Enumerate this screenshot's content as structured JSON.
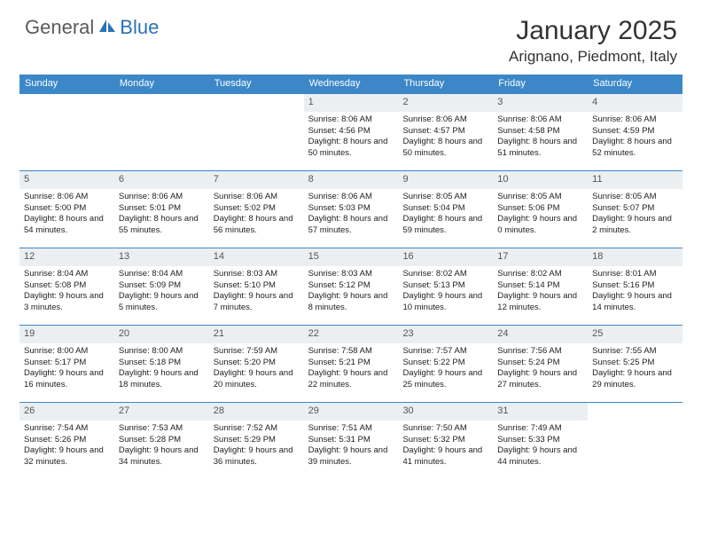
{
  "logo": {
    "general": "General",
    "blue": "Blue"
  },
  "title": "January 2025",
  "location": "Arignano, Piedmont, Italy",
  "colors": {
    "header_bg": "#3b87c8",
    "daynum_bg": "#eceff1",
    "row_border": "#3b87c8",
    "logo_blue": "#2a72b5",
    "logo_gray": "#5a5a5a"
  },
  "weekdays": [
    "Sunday",
    "Monday",
    "Tuesday",
    "Wednesday",
    "Thursday",
    "Friday",
    "Saturday"
  ],
  "weeks": [
    [
      {
        "empty": true
      },
      {
        "empty": true
      },
      {
        "empty": true
      },
      {
        "num": "1",
        "sunrise": "Sunrise: 8:06 AM",
        "sunset": "Sunset: 4:56 PM",
        "daylight": "Daylight: 8 hours and 50 minutes."
      },
      {
        "num": "2",
        "sunrise": "Sunrise: 8:06 AM",
        "sunset": "Sunset: 4:57 PM",
        "daylight": "Daylight: 8 hours and 50 minutes."
      },
      {
        "num": "3",
        "sunrise": "Sunrise: 8:06 AM",
        "sunset": "Sunset: 4:58 PM",
        "daylight": "Daylight: 8 hours and 51 minutes."
      },
      {
        "num": "4",
        "sunrise": "Sunrise: 8:06 AM",
        "sunset": "Sunset: 4:59 PM",
        "daylight": "Daylight: 8 hours and 52 minutes."
      }
    ],
    [
      {
        "num": "5",
        "sunrise": "Sunrise: 8:06 AM",
        "sunset": "Sunset: 5:00 PM",
        "daylight": "Daylight: 8 hours and 54 minutes."
      },
      {
        "num": "6",
        "sunrise": "Sunrise: 8:06 AM",
        "sunset": "Sunset: 5:01 PM",
        "daylight": "Daylight: 8 hours and 55 minutes."
      },
      {
        "num": "7",
        "sunrise": "Sunrise: 8:06 AM",
        "sunset": "Sunset: 5:02 PM",
        "daylight": "Daylight: 8 hours and 56 minutes."
      },
      {
        "num": "8",
        "sunrise": "Sunrise: 8:06 AM",
        "sunset": "Sunset: 5:03 PM",
        "daylight": "Daylight: 8 hours and 57 minutes."
      },
      {
        "num": "9",
        "sunrise": "Sunrise: 8:05 AM",
        "sunset": "Sunset: 5:04 PM",
        "daylight": "Daylight: 8 hours and 59 minutes."
      },
      {
        "num": "10",
        "sunrise": "Sunrise: 8:05 AM",
        "sunset": "Sunset: 5:06 PM",
        "daylight": "Daylight: 9 hours and 0 minutes."
      },
      {
        "num": "11",
        "sunrise": "Sunrise: 8:05 AM",
        "sunset": "Sunset: 5:07 PM",
        "daylight": "Daylight: 9 hours and 2 minutes."
      }
    ],
    [
      {
        "num": "12",
        "sunrise": "Sunrise: 8:04 AM",
        "sunset": "Sunset: 5:08 PM",
        "daylight": "Daylight: 9 hours and 3 minutes."
      },
      {
        "num": "13",
        "sunrise": "Sunrise: 8:04 AM",
        "sunset": "Sunset: 5:09 PM",
        "daylight": "Daylight: 9 hours and 5 minutes."
      },
      {
        "num": "14",
        "sunrise": "Sunrise: 8:03 AM",
        "sunset": "Sunset: 5:10 PM",
        "daylight": "Daylight: 9 hours and 7 minutes."
      },
      {
        "num": "15",
        "sunrise": "Sunrise: 8:03 AM",
        "sunset": "Sunset: 5:12 PM",
        "daylight": "Daylight: 9 hours and 8 minutes."
      },
      {
        "num": "16",
        "sunrise": "Sunrise: 8:02 AM",
        "sunset": "Sunset: 5:13 PM",
        "daylight": "Daylight: 9 hours and 10 minutes."
      },
      {
        "num": "17",
        "sunrise": "Sunrise: 8:02 AM",
        "sunset": "Sunset: 5:14 PM",
        "daylight": "Daylight: 9 hours and 12 minutes."
      },
      {
        "num": "18",
        "sunrise": "Sunrise: 8:01 AM",
        "sunset": "Sunset: 5:16 PM",
        "daylight": "Daylight: 9 hours and 14 minutes."
      }
    ],
    [
      {
        "num": "19",
        "sunrise": "Sunrise: 8:00 AM",
        "sunset": "Sunset: 5:17 PM",
        "daylight": "Daylight: 9 hours and 16 minutes."
      },
      {
        "num": "20",
        "sunrise": "Sunrise: 8:00 AM",
        "sunset": "Sunset: 5:18 PM",
        "daylight": "Daylight: 9 hours and 18 minutes."
      },
      {
        "num": "21",
        "sunrise": "Sunrise: 7:59 AM",
        "sunset": "Sunset: 5:20 PM",
        "daylight": "Daylight: 9 hours and 20 minutes."
      },
      {
        "num": "22",
        "sunrise": "Sunrise: 7:58 AM",
        "sunset": "Sunset: 5:21 PM",
        "daylight": "Daylight: 9 hours and 22 minutes."
      },
      {
        "num": "23",
        "sunrise": "Sunrise: 7:57 AM",
        "sunset": "Sunset: 5:22 PM",
        "daylight": "Daylight: 9 hours and 25 minutes."
      },
      {
        "num": "24",
        "sunrise": "Sunrise: 7:56 AM",
        "sunset": "Sunset: 5:24 PM",
        "daylight": "Daylight: 9 hours and 27 minutes."
      },
      {
        "num": "25",
        "sunrise": "Sunrise: 7:55 AM",
        "sunset": "Sunset: 5:25 PM",
        "daylight": "Daylight: 9 hours and 29 minutes."
      }
    ],
    [
      {
        "num": "26",
        "sunrise": "Sunrise: 7:54 AM",
        "sunset": "Sunset: 5:26 PM",
        "daylight": "Daylight: 9 hours and 32 minutes."
      },
      {
        "num": "27",
        "sunrise": "Sunrise: 7:53 AM",
        "sunset": "Sunset: 5:28 PM",
        "daylight": "Daylight: 9 hours and 34 minutes."
      },
      {
        "num": "28",
        "sunrise": "Sunrise: 7:52 AM",
        "sunset": "Sunset: 5:29 PM",
        "daylight": "Daylight: 9 hours and 36 minutes."
      },
      {
        "num": "29",
        "sunrise": "Sunrise: 7:51 AM",
        "sunset": "Sunset: 5:31 PM",
        "daylight": "Daylight: 9 hours and 39 minutes."
      },
      {
        "num": "30",
        "sunrise": "Sunrise: 7:50 AM",
        "sunset": "Sunset: 5:32 PM",
        "daylight": "Daylight: 9 hours and 41 minutes."
      },
      {
        "num": "31",
        "sunrise": "Sunrise: 7:49 AM",
        "sunset": "Sunset: 5:33 PM",
        "daylight": "Daylight: 9 hours and 44 minutes."
      },
      {
        "empty": true
      }
    ]
  ]
}
